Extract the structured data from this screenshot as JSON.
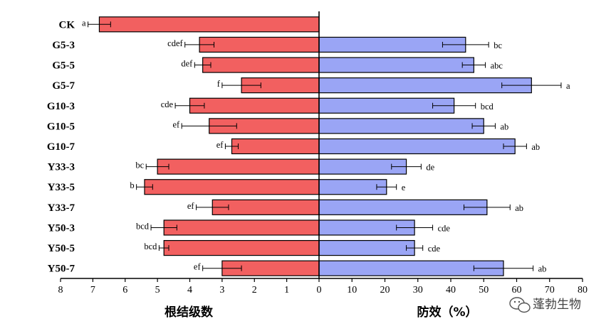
{
  "watermark": "蓬勃生物",
  "chart_data": {
    "type": "bar",
    "orientation": "horizontal",
    "layout": "back-to-back",
    "categories": [
      "CK",
      "G5-3",
      "G5-5",
      "G5-7",
      "G10-3",
      "G10-5",
      "G10-7",
      "Y33-3",
      "Y33-5",
      "Y33-7",
      "Y50-3",
      "Y50-5",
      "Y50-7"
    ],
    "left": {
      "xlabel": "根结级数",
      "xlim": [
        8,
        0
      ],
      "ticks": [
        "8",
        "7",
        "6",
        "5",
        "4",
        "3",
        "2",
        "1",
        "0"
      ],
      "color": "#f26060",
      "values": [
        6.8,
        3.7,
        3.6,
        2.4,
        4.0,
        3.4,
        2.7,
        5.0,
        5.4,
        3.3,
        4.8,
        4.8,
        3.0
      ],
      "errors": [
        0.35,
        0.45,
        0.25,
        0.6,
        0.45,
        0.85,
        0.2,
        0.35,
        0.25,
        0.5,
        0.4,
        0.15,
        0.6
      ],
      "significance": [
        "a",
        "cdef",
        "def",
        "f",
        "cde",
        "ef",
        "ef",
        "bc",
        "b",
        "ef",
        "bcd",
        "bcd",
        "ef"
      ]
    },
    "right": {
      "xlabel": "防效（%）",
      "xlim": [
        0,
        80
      ],
      "ticks": [
        "0",
        "10",
        "20",
        "30",
        "40",
        "50",
        "60",
        "70",
        "80"
      ],
      "color": "#9aa5f5",
      "values": [
        null,
        44.5,
        47,
        64.5,
        41,
        50,
        59.5,
        26.5,
        20.5,
        51,
        29,
        29,
        56
      ],
      "errors": [
        null,
        7,
        3.5,
        9,
        6.5,
        3.5,
        3.5,
        4.5,
        3,
        7,
        5.5,
        2.5,
        9
      ],
      "significance": [
        "",
        "bc",
        "abc",
        "a",
        "bcd",
        "ab",
        "ab",
        "de",
        "e",
        "ab",
        "cde",
        "cde",
        "ab"
      ]
    }
  }
}
